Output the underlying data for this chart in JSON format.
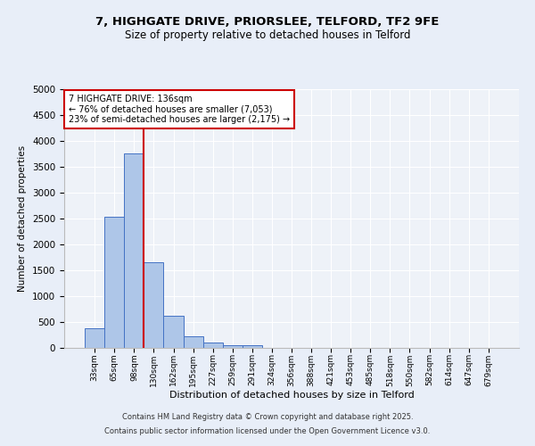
{
  "title_line1": "7, HIGHGATE DRIVE, PRIORSLEE, TELFORD, TF2 9FE",
  "title_line2": "Size of property relative to detached houses in Telford",
  "xlabel": "Distribution of detached houses by size in Telford",
  "ylabel": "Number of detached properties",
  "bar_labels": [
    "33sqm",
    "65sqm",
    "98sqm",
    "130sqm",
    "162sqm",
    "195sqm",
    "227sqm",
    "259sqm",
    "291sqm",
    "324sqm",
    "356sqm",
    "388sqm",
    "421sqm",
    "453sqm",
    "485sqm",
    "518sqm",
    "550sqm",
    "582sqm",
    "614sqm",
    "647sqm",
    "679sqm"
  ],
  "bar_values": [
    380,
    2530,
    3760,
    1660,
    620,
    230,
    110,
    50,
    50,
    0,
    0,
    0,
    0,
    0,
    0,
    0,
    0,
    0,
    0,
    0,
    0
  ],
  "bar_color": "#aec6e8",
  "bar_edge_color": "#4472c4",
  "vline_x_index": 3,
  "vline_color": "#cc0000",
  "ylim": [
    0,
    5000
  ],
  "yticks": [
    0,
    500,
    1000,
    1500,
    2000,
    2500,
    3000,
    3500,
    4000,
    4500,
    5000
  ],
  "annotation_text": "7 HIGHGATE DRIVE: 136sqm\n← 76% of detached houses are smaller (7,053)\n23% of semi-detached houses are larger (2,175) →",
  "annotation_box_color": "#ffffff",
  "annotation_box_edge_color": "#cc0000",
  "footer_line1": "Contains HM Land Registry data © Crown copyright and database right 2025.",
  "footer_line2": "Contains public sector information licensed under the Open Government Licence v3.0.",
  "bg_color": "#e8eef8",
  "plot_bg_color": "#eef2f8"
}
